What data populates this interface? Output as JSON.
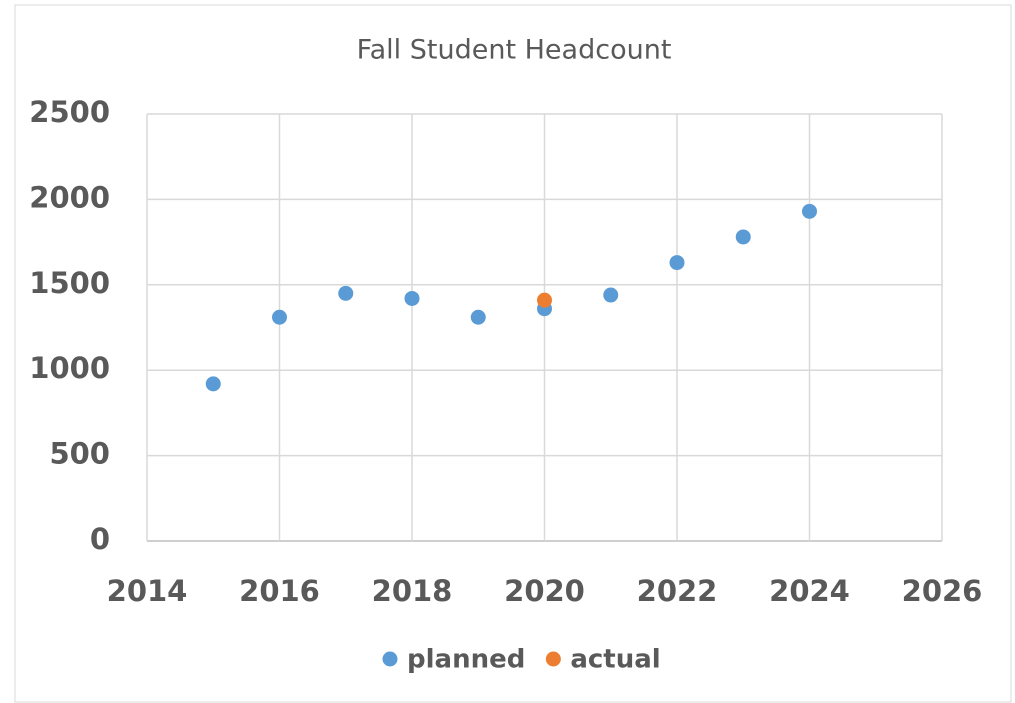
{
  "chart_data": {
    "type": "scatter",
    "title": "Fall Student Headcount",
    "series": [
      {
        "name": "planned",
        "color": "#5b9bd5",
        "x": [
          2015,
          2016,
          2017,
          2018,
          2019,
          2020,
          2021,
          2022,
          2023,
          2024
        ],
        "values": [
          920,
          1310,
          1450,
          1420,
          1310,
          1360,
          1440,
          1630,
          1780,
          1930
        ]
      },
      {
        "name": "actual",
        "color": "#ed7d31",
        "x": [
          2020
        ],
        "values": [
          1410
        ]
      }
    ],
    "xlim": [
      2014,
      2026
    ],
    "xticks": [
      2014,
      2016,
      2018,
      2020,
      2022,
      2024,
      2026
    ],
    "ylim": [
      0,
      2500
    ],
    "yticks": [
      0,
      500,
      1000,
      1500,
      2000,
      2500
    ],
    "grid": true,
    "legend": "bottom"
  }
}
